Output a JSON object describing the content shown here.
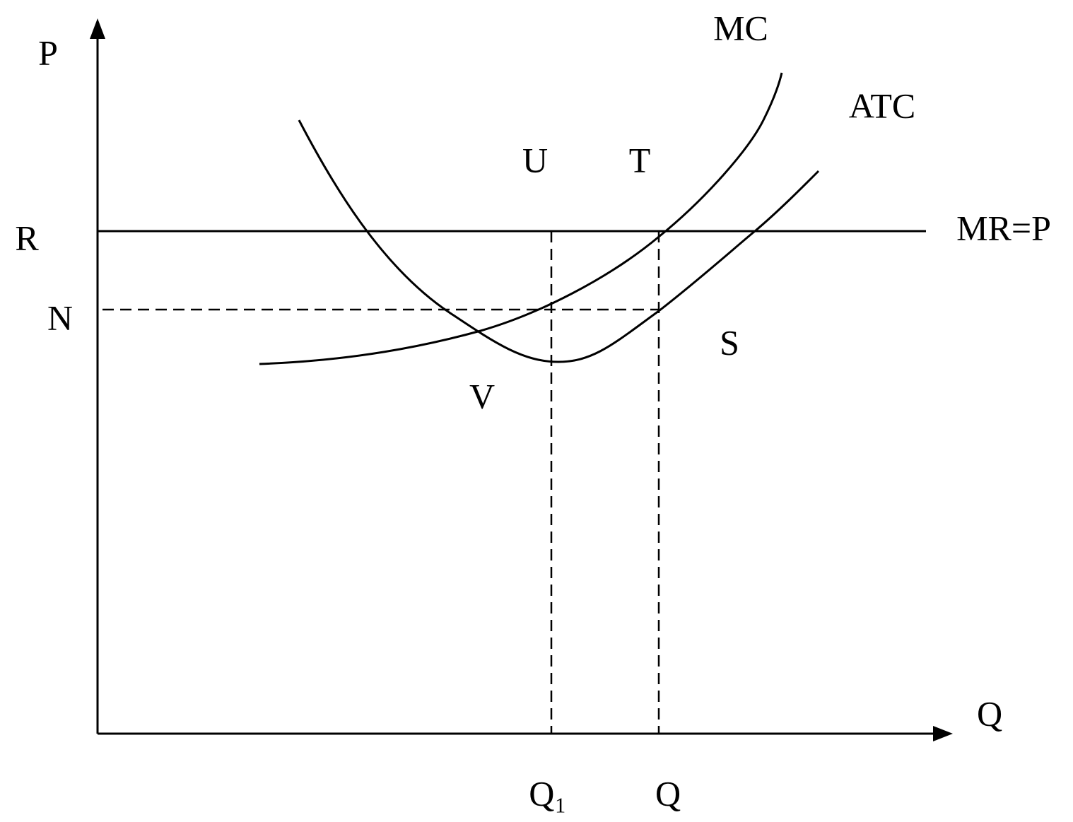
{
  "axes": {
    "y_label": "P",
    "x_label": "Q"
  },
  "curves": {
    "mc": "MC",
    "atc": "ATC",
    "mr": "MR=P"
  },
  "price_labels": {
    "r": "R",
    "n": "N"
  },
  "point_labels": {
    "u": "U",
    "t": "T",
    "s": "S",
    "v": "V"
  },
  "quantity_labels": {
    "q1": "Q₁",
    "q": "Q"
  }
}
